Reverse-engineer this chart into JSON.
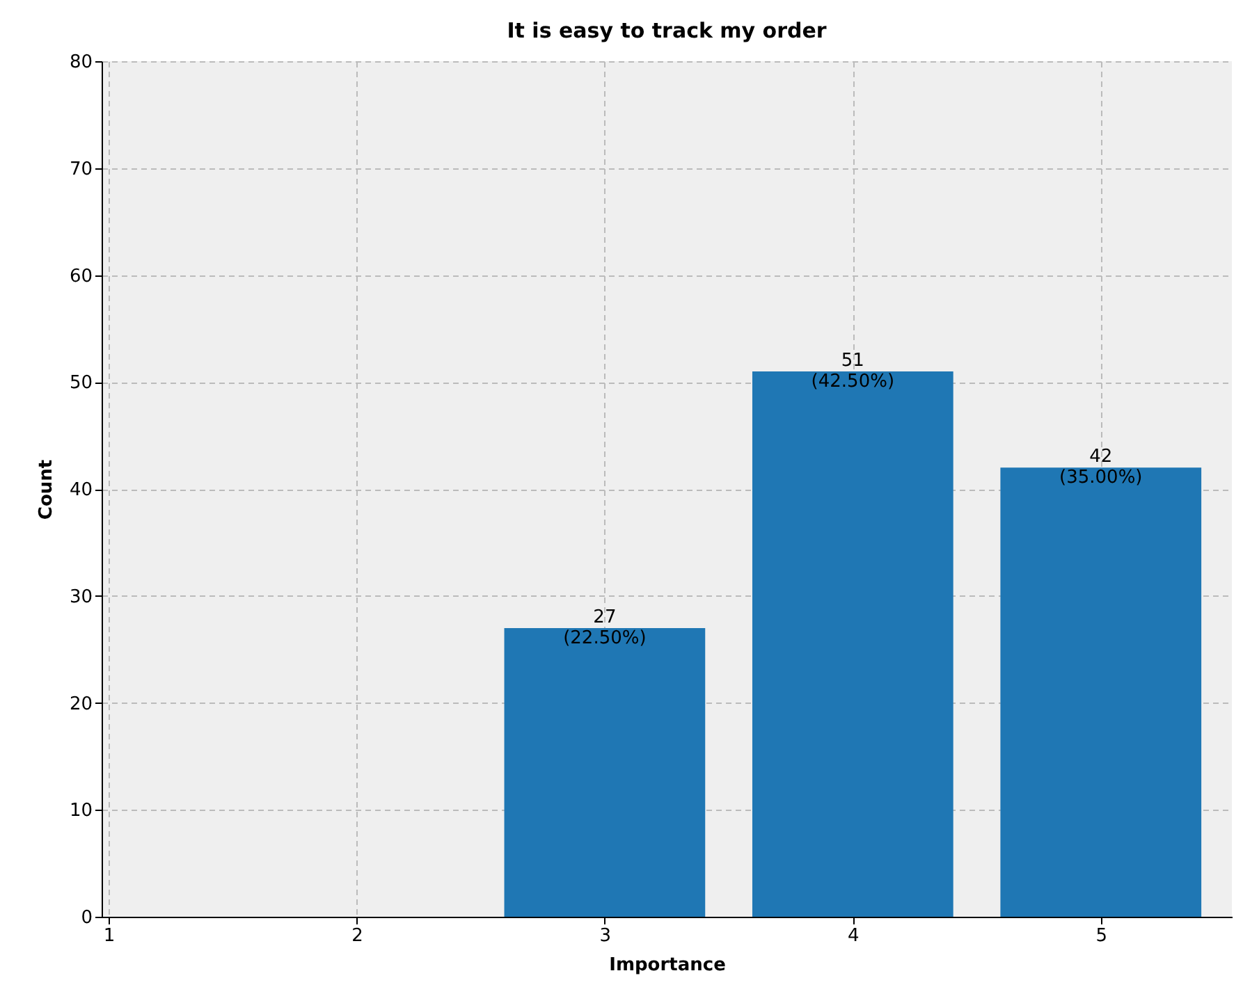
{
  "chart_data": {
    "type": "bar",
    "title": "It is easy to track my order",
    "xlabel": "Importance",
    "ylabel": "Count",
    "x": [
      3,
      4,
      5
    ],
    "values": [
      27,
      51,
      42
    ],
    "value_labels": [
      "27\n(22.50%)",
      "51\n(42.50%)",
      "42\n(35.00%)"
    ],
    "color": "#1f77b4",
    "xlim": [
      1,
      5.5
    ],
    "xticks": [
      1,
      2,
      3,
      4,
      5
    ],
    "ylim": [
      0,
      80
    ],
    "yticks": [
      0,
      10,
      20,
      30,
      40,
      50,
      60,
      70,
      80
    ],
    "grid": true
  }
}
